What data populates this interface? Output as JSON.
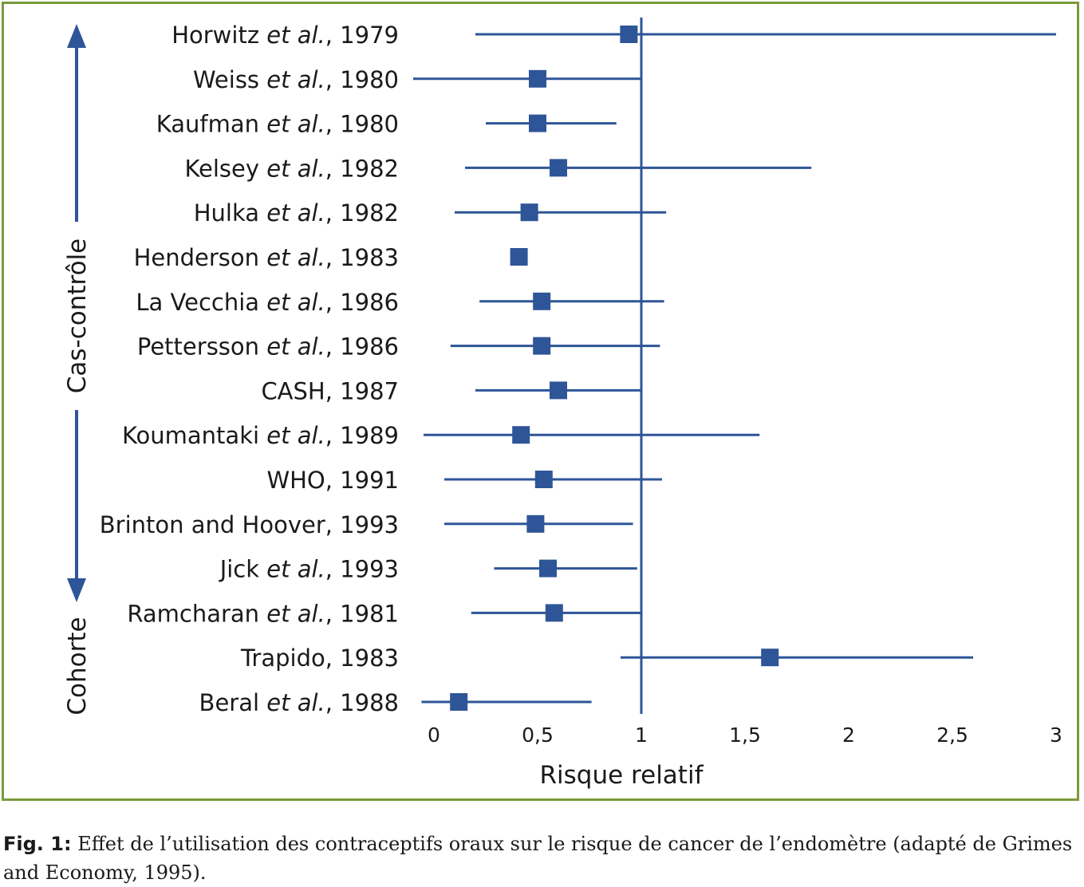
{
  "chart_data": {
    "type": "forest",
    "xlabel": "Risque relatif",
    "xticks": [
      "0",
      "0,5",
      "1",
      "1,5",
      "2",
      "2,5",
      "3"
    ],
    "xtick_values": [
      0,
      0.5,
      1,
      1.5,
      2,
      2.5,
      3
    ],
    "xlim": [
      0,
      3
    ],
    "reference_line": 1,
    "group_labels": {
      "case_control": "Cas-contrôle",
      "cohort": "Cohorte"
    },
    "studies": [
      {
        "author": "Horwitz",
        "etal": true,
        "year": "1979",
        "rr": 0.94,
        "ci": [
          0.2,
          3.0
        ]
      },
      {
        "author": "Weiss",
        "etal": true,
        "year": "1980",
        "rr": 0.5,
        "ci": [
          -0.1,
          1.0
        ]
      },
      {
        "author": "Kaufman",
        "etal": true,
        "year": "1980",
        "rr": 0.5,
        "ci": [
          0.25,
          0.88
        ]
      },
      {
        "author": "Kelsey",
        "etal": true,
        "year": "1982",
        "rr": 0.6,
        "ci": [
          0.15,
          1.82
        ]
      },
      {
        "author": "Hulka",
        "etal": true,
        "year": "1982",
        "rr": 0.46,
        "ci": [
          0.1,
          1.12
        ]
      },
      {
        "author": "Henderson",
        "etal": true,
        "year": "1983",
        "rr": 0.41,
        "ci": null
      },
      {
        "author": "La Vecchia",
        "etal": true,
        "year": "1986",
        "rr": 0.52,
        "ci": [
          0.22,
          1.11
        ]
      },
      {
        "author": "Pettersson",
        "etal": true,
        "year": "1986",
        "rr": 0.52,
        "ci": [
          0.08,
          1.09
        ]
      },
      {
        "author": "CASH",
        "etal": false,
        "year": "1987",
        "rr": 0.6,
        "ci": [
          0.2,
          1.0
        ]
      },
      {
        "author": "Koumantaki",
        "etal": true,
        "year": "1989",
        "rr": 0.42,
        "ci": [
          -0.05,
          1.57
        ]
      },
      {
        "author": "WHO",
        "etal": false,
        "year": "1991",
        "rr": 0.53,
        "ci": [
          0.05,
          1.1
        ]
      },
      {
        "author": "Brinton and Hoover",
        "etal": false,
        "year": "1993",
        "rr": 0.49,
        "ci": [
          0.05,
          0.96
        ]
      },
      {
        "author": "Jick",
        "etal": true,
        "year": "1993",
        "rr": 0.55,
        "ci": [
          0.29,
          0.98
        ]
      },
      {
        "author": "Ramcharan",
        "etal": true,
        "year": "1981",
        "rr": 0.58,
        "ci": [
          0.18,
          1.0
        ]
      },
      {
        "author": "Trapido",
        "etal": false,
        "year": "1983",
        "rr": 1.62,
        "ci": [
          0.9,
          2.6
        ]
      },
      {
        "author": "Beral",
        "etal": true,
        "year": "1988",
        "rr": 0.12,
        "ci": [
          -0.06,
          0.76
        ]
      }
    ],
    "etal_text": "et al.",
    "colors": {
      "marker": "#2e5597",
      "line": "#2e5597",
      "frame": "#7a9a3a"
    }
  },
  "caption": {
    "label": "Fig. 1:",
    "text": " Effet de l’utilisation des contraceptifs oraux sur le risque de cancer de l’endomètre (adapté de Grimes and Economy, 1995)."
  }
}
